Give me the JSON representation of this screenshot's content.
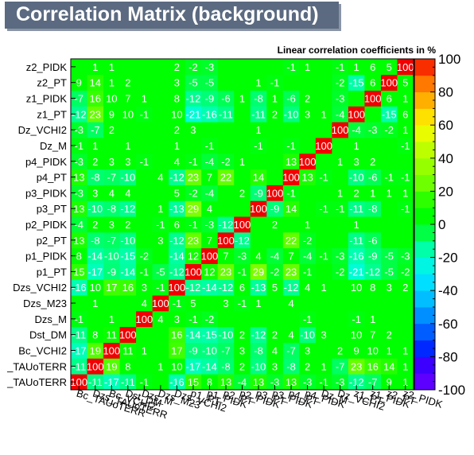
{
  "title": "Correlation Matrix (background)",
  "chart_data": {
    "type": "heatmap",
    "title": "Correlation Matrix (background)",
    "subtitle": "Linear correlation coefficients in %",
    "variables": [
      "Bc_TAUoTERR",
      "Dzs_TAUoTERR",
      "Bc_VCHI2",
      "Dst_DM",
      "Dzs_M",
      "Dzs_M23",
      "Dzs_VCHI2",
      "p1_PT",
      "p1_PIDK",
      "p2_PT",
      "p2_PIDK",
      "p3_PT",
      "p3_PIDK",
      "p4_PT",
      "p4_PIDK",
      "Dz_M",
      "Dz_VCHI2",
      "z1_PT",
      "z1_PIDK",
      "z2_PT",
      "z2_PIDK"
    ],
    "x_tick_labels": [
      "Bc_TAUoTERR",
      "Dzs_TAUoTERR",
      "Bc_VCHI2",
      "Dst_DM",
      "Dzs_M",
      "Dzs_M23",
      "Dzs_VCHI2",
      "p1_PT",
      "p1_PIDK",
      "p2_PT",
      "p2_PIDK",
      "p3_PT",
      "p3_PIDK",
      "p4_PT",
      "p4_PIDK",
      "Dz_M",
      "Dz_VCHI2",
      "z1_PT",
      "z1_PIDK",
      "z2_PT",
      "z2_PIDK"
    ],
    "y_tick_labels": [
      "Bc_TAUoTERR",
      "Dzs_TAUoTERR",
      "Bc_VCHI2",
      "Dst_DM",
      "Dzs_M",
      "Dzs_M23",
      "Dzs_VCHI2",
      "p1_PT",
      "p1_PIDK",
      "p2_PT",
      "p2_PIDK",
      "p3_PT",
      "p3_PIDK",
      "p4_PT",
      "p4_PIDK",
      "Dz_M",
      "Dz_VCHI2",
      "z1_PT",
      "z1_PIDK",
      "z2_PT",
      "z2_PIDK"
    ],
    "y_tick_labels_displayed": [
      "_TAUoTERR",
      "_TAUoTERR",
      "Bc_VCHI2",
      "Dst_DM",
      "Dzs_M",
      "Dzs_M23",
      "Dzs_VCHI2",
      "p1_PT",
      "p1_PIDK",
      "p2_PT",
      "p2_PIDK",
      "p3_PT",
      "p3_PIDK",
      "p4_PT",
      "p4_PIDK",
      "Dz_M",
      "Dz_VCHI2",
      "z1_PT",
      "z1_PIDK",
      "z2_PT",
      "z2_PIDK"
    ],
    "row_order_note": "rows listed bottom to top",
    "values": [
      [
        100,
        -11,
        -17,
        -11,
        -1,
        0,
        -16,
        15,
        8,
        13,
        -4,
        13,
        -3,
        13,
        -3,
        -1,
        -3,
        -12,
        -7,
        9,
        1
      ],
      [
        -11,
        100,
        19,
        8,
        0,
        1,
        10,
        -17,
        -14,
        -8,
        2,
        -10,
        3,
        -8,
        2,
        1,
        -7,
        23,
        16,
        14,
        1
      ],
      [
        -17,
        19,
        100,
        11,
        1,
        0,
        17,
        -9,
        -10,
        -7,
        3,
        -8,
        4,
        -7,
        3,
        0,
        2,
        9,
        10,
        1,
        1
      ],
      [
        -11,
        8,
        11,
        100,
        0,
        0,
        16,
        -14,
        -15,
        -10,
        2,
        -12,
        2,
        4,
        -10,
        3,
        0,
        10,
        7,
        2,
        0
      ],
      [
        -1,
        0,
        1,
        0,
        100,
        4,
        3,
        -1,
        -2,
        0,
        0,
        0,
        0,
        0,
        -1,
        0,
        0,
        -1,
        1,
        0,
        0
      ],
      [
        0,
        1,
        0,
        0,
        4,
        100,
        -1,
        5,
        0,
        3,
        -1,
        1,
        0,
        4,
        0,
        0,
        0,
        0,
        0,
        0,
        0
      ],
      [
        -16,
        10,
        17,
        16,
        3,
        -1,
        100,
        -12,
        -14,
        -12,
        6,
        -13,
        5,
        -12,
        4,
        1,
        0,
        10,
        8,
        3,
        2
      ],
      [
        15,
        -17,
        -9,
        -14,
        -1,
        -5,
        -12,
        100,
        12,
        23,
        -1,
        29,
        -2,
        23,
        -1,
        0,
        -2,
        -21,
        -12,
        -5,
        -2
      ],
      [
        8,
        -14,
        -10,
        -15,
        -2,
        0,
        -14,
        12,
        100,
        7,
        -3,
        4,
        -4,
        7,
        -4,
        -1,
        -3,
        -16,
        -9,
        -5,
        -3
      ],
      [
        13,
        -8,
        -7,
        -10,
        0,
        3,
        -12,
        23,
        7,
        100,
        -12,
        0,
        0,
        22,
        -2,
        0,
        0,
        -11,
        -6,
        0,
        0
      ],
      [
        -4,
        2,
        3,
        2,
        0,
        -1,
        6,
        -1,
        -3,
        -12,
        100,
        0,
        2,
        0,
        1,
        0,
        0,
        1,
        0,
        0,
        0
      ],
      [
        13,
        -10,
        -8,
        -12,
        0,
        1,
        -13,
        29,
        4,
        0,
        0,
        100,
        -9,
        14,
        0,
        -1,
        -1,
        -11,
        -8,
        0,
        -1
      ],
      [
        -3,
        3,
        4,
        4,
        0,
        0,
        5,
        -2,
        -4,
        0,
        2,
        -9,
        100,
        -1,
        0,
        0,
        1,
        2,
        1,
        1,
        1
      ],
      [
        13,
        -8,
        -7,
        -10,
        0,
        4,
        -12,
        23,
        7,
        22,
        0,
        14,
        0,
        100,
        13,
        -1,
        0,
        -10,
        -6,
        -1,
        -1
      ],
      [
        -3,
        2,
        3,
        3,
        -1,
        0,
        4,
        -1,
        -4,
        -2,
        1,
        0,
        0,
        13,
        100,
        0,
        1,
        3,
        2,
        0,
        0
      ],
      [
        -1,
        1,
        0,
        1,
        0,
        0,
        1,
        0,
        -1,
        0,
        0,
        -1,
        0,
        -1,
        0,
        100,
        0,
        1,
        0,
        0,
        -1
      ],
      [
        -3,
        -7,
        2,
        0,
        0,
        0,
        2,
        3,
        0,
        0,
        0,
        1,
        0,
        0,
        0,
        0,
        100,
        -4,
        -3,
        -2,
        1
      ],
      [
        -12,
        23,
        9,
        10,
        -1,
        0,
        10,
        -21,
        -16,
        -11,
        0,
        -11,
        2,
        -10,
        3,
        1,
        -4,
        100,
        0,
        -15,
        6
      ],
      [
        -7,
        16,
        10,
        7,
        1,
        0,
        8,
        -12,
        -9,
        -6,
        1,
        -8,
        1,
        -6,
        2,
        0,
        -3,
        0,
        100,
        6,
        1
      ],
      [
        9,
        14,
        1,
        2,
        0,
        0,
        3,
        -5,
        -5,
        0,
        0,
        1,
        -1,
        0,
        0,
        0,
        -2,
        -15,
        6,
        100,
        5
      ],
      [
        0,
        1,
        1,
        0,
        0,
        0,
        2,
        -2,
        -3,
        0,
        0,
        0,
        0,
        -1,
        1,
        0,
        -1,
        1,
        6,
        5,
        100
      ]
    ],
    "zlim": [
      -100,
      100
    ],
    "colorbar_ticks": [
      -100,
      -80,
      -60,
      -40,
      -20,
      0,
      20,
      40,
      60,
      80,
      100
    ],
    "palette_note": "rainbow: violet/blue at -100, cyan around -20, green at 0, yellow/orange, red at +100"
  }
}
